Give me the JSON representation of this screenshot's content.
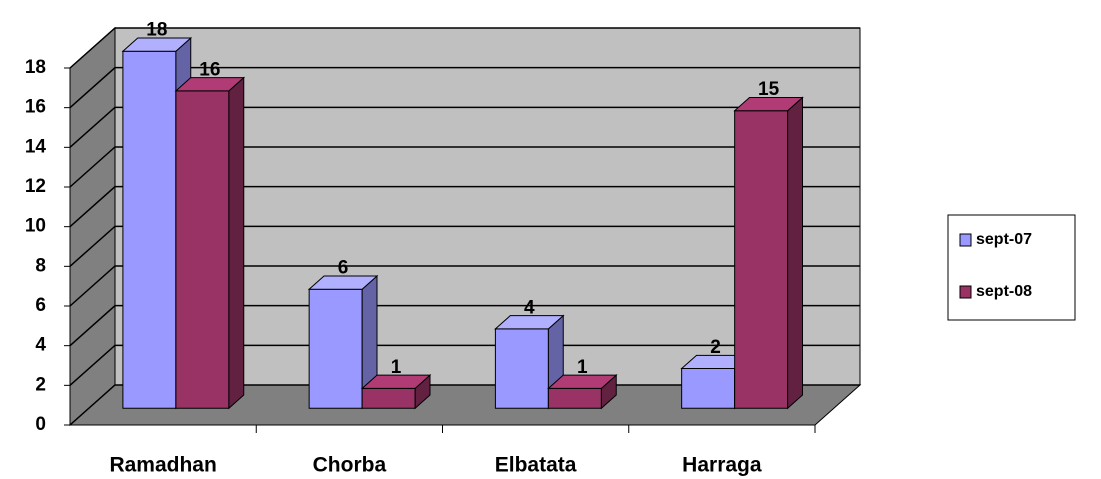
{
  "chart_data": {
    "type": "bar3d",
    "categories": [
      "Ramadhan",
      "Chorba",
      "Elbatata",
      "Harraga"
    ],
    "series": [
      {
        "name": "sept-07",
        "color": "#9999ff",
        "values": [
          18,
          6,
          4,
          2
        ]
      },
      {
        "name": "sept-08",
        "color": "#993366",
        "values": [
          16,
          1,
          1,
          15
        ]
      }
    ],
    "ylim": [
      0,
      18
    ],
    "yticks": [
      0,
      2,
      4,
      6,
      8,
      10,
      12,
      14,
      16,
      18
    ],
    "grid": true,
    "legend": "right"
  }
}
